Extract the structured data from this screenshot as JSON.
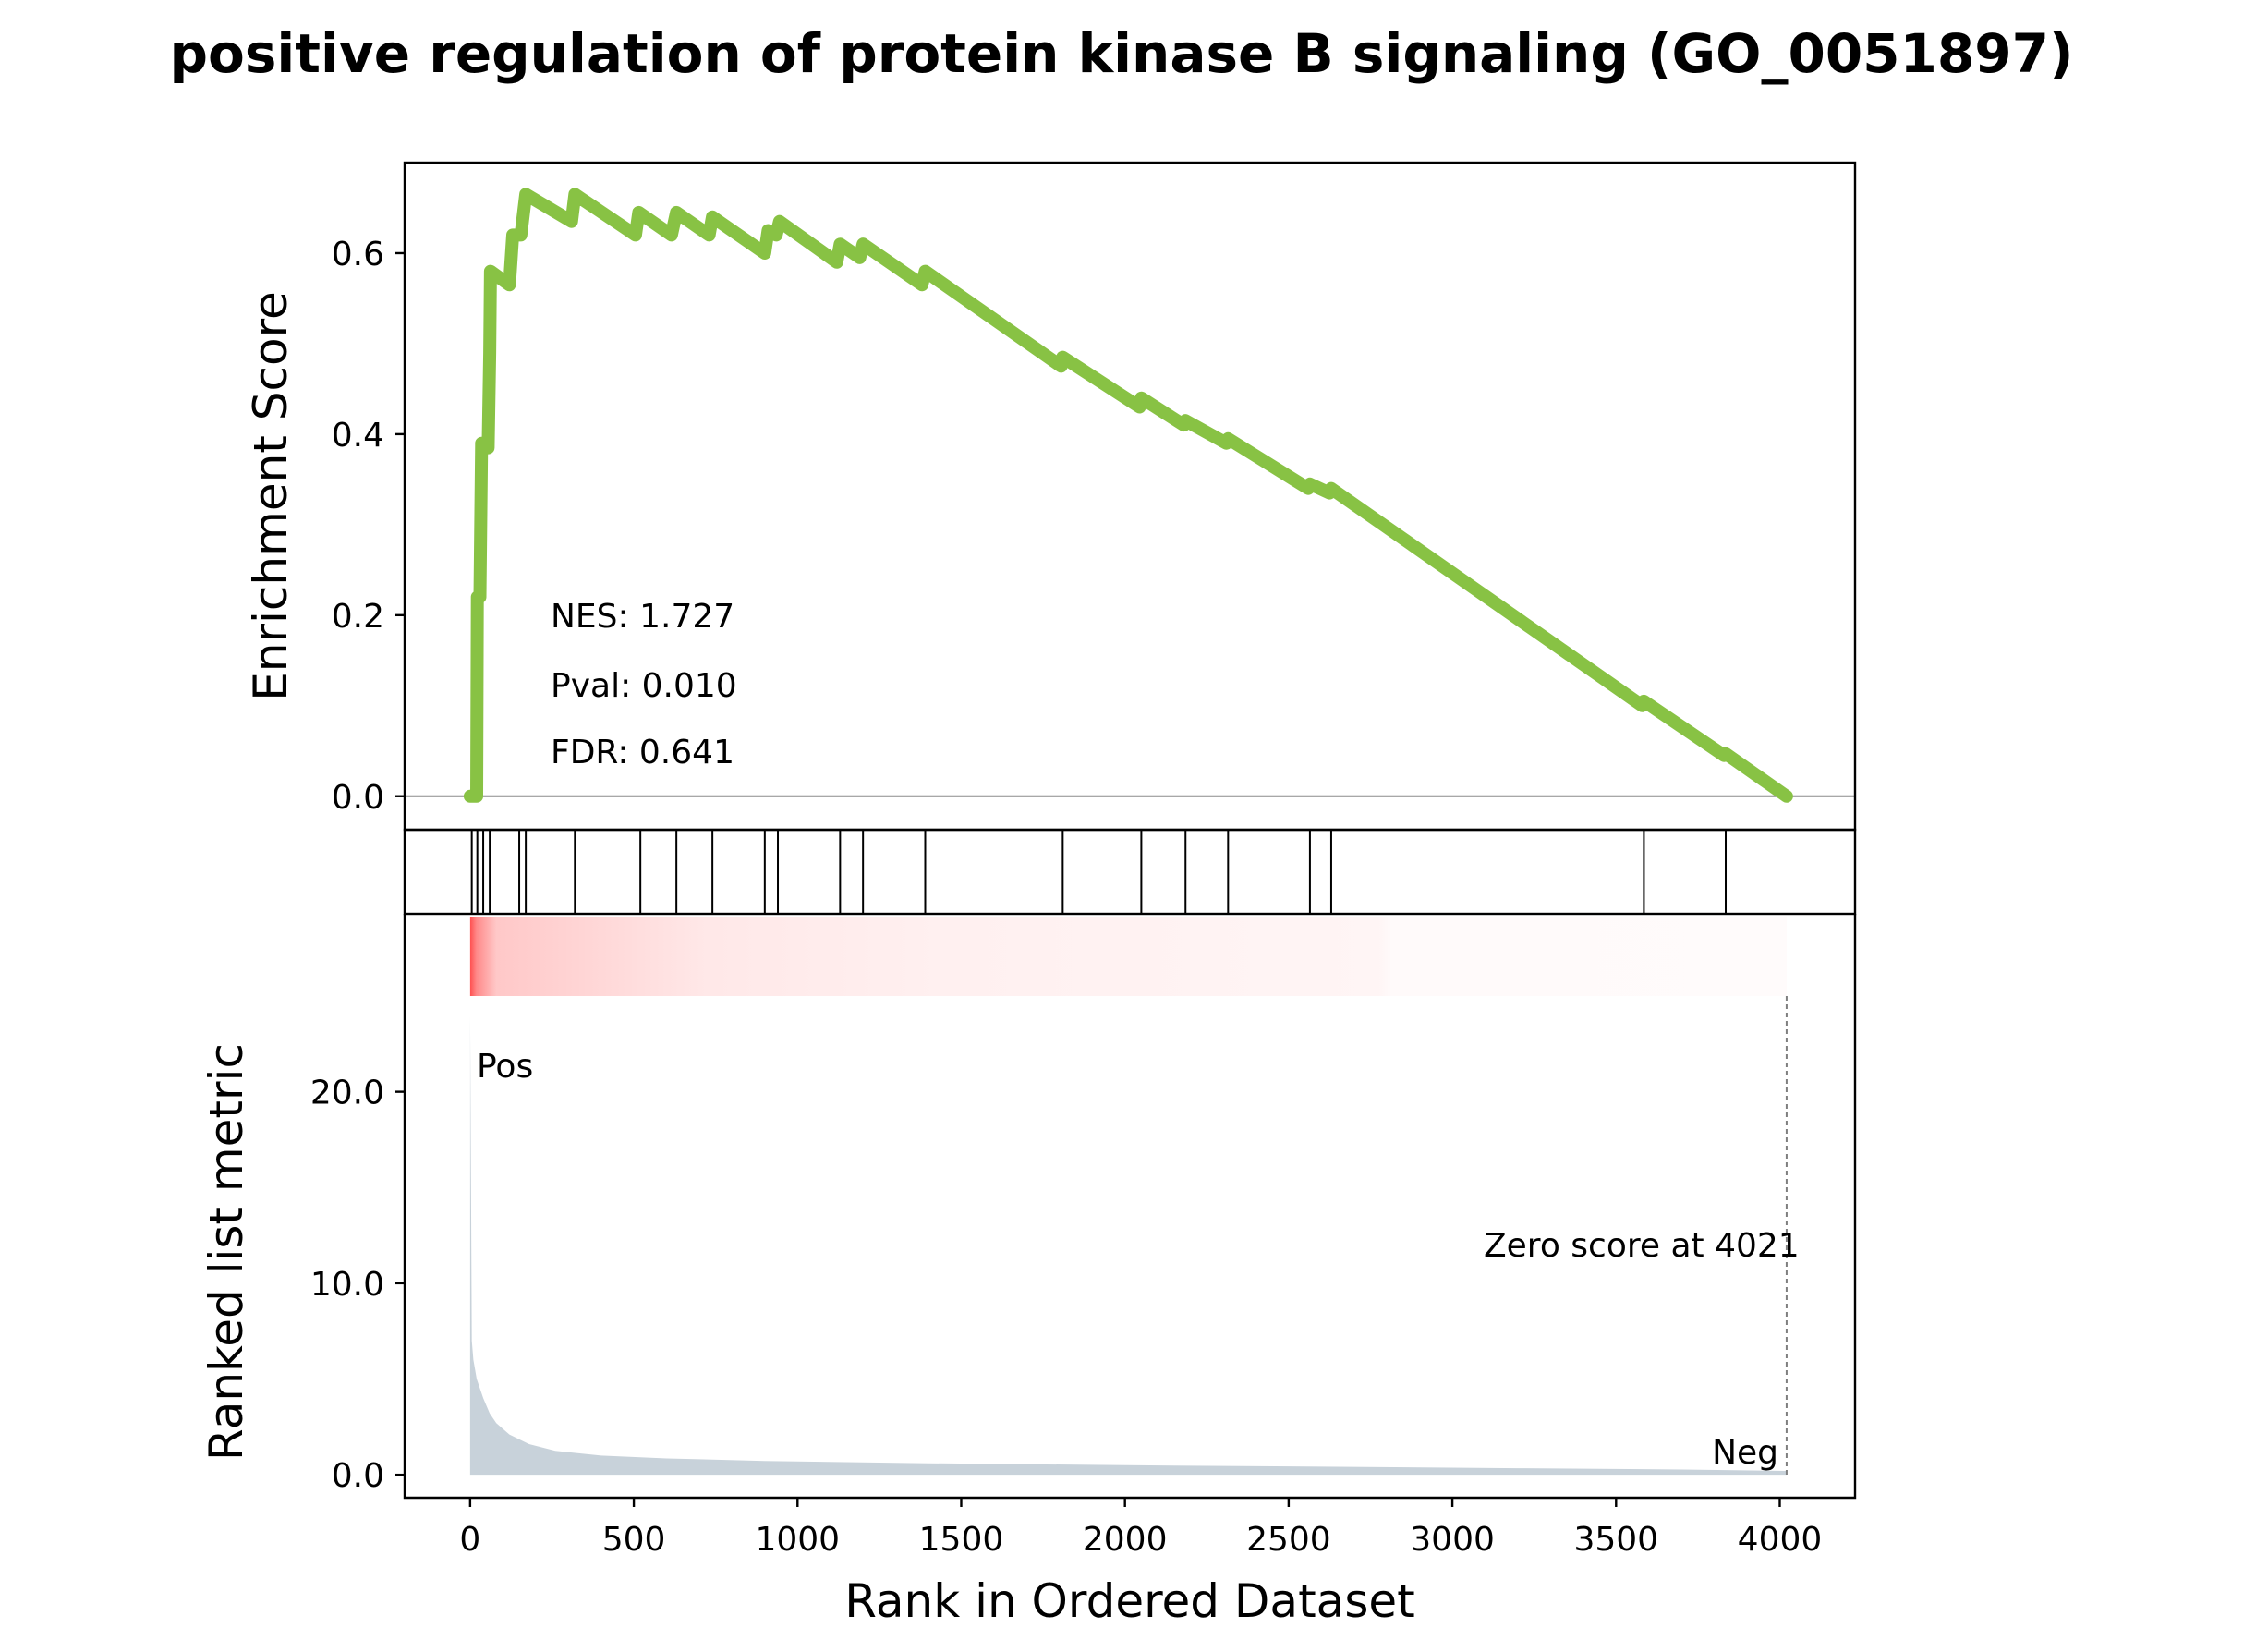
{
  "chart_data": {
    "type": "line",
    "title": "positive regulation of protein kinase B signaling (GO_0051897)",
    "es_panel": {
      "ylabel": "Enrichment Score",
      "yticks": [
        "0.0",
        "0.2",
        "0.4",
        "0.6"
      ],
      "ylim": [
        -0.037,
        0.7
      ],
      "line_color": "#88c244",
      "hits": [
        5,
        22,
        40,
        60,
        150,
        170,
        320,
        520,
        630,
        740,
        900,
        940,
        1130,
        1200,
        1390,
        1810,
        2050,
        2185,
        2315,
        2565,
        2630,
        3585,
        3835
      ],
      "curve": [
        [
          0,
          0.0
        ],
        [
          20,
          0.0
        ],
        [
          22,
          0.22
        ],
        [
          30,
          0.22
        ],
        [
          35,
          0.39
        ],
        [
          55,
          0.385
        ],
        [
          60,
          0.49
        ],
        [
          62,
          0.58
        ],
        [
          120,
          0.565
        ],
        [
          130,
          0.62
        ],
        [
          155,
          0.62
        ],
        [
          170,
          0.665
        ],
        [
          310,
          0.635
        ],
        [
          320,
          0.665
        ],
        [
          505,
          0.62
        ],
        [
          515,
          0.645
        ],
        [
          615,
          0.62
        ],
        [
          630,
          0.645
        ],
        [
          730,
          0.62
        ],
        [
          740,
          0.64
        ],
        [
          900,
          0.6
        ],
        [
          910,
          0.625
        ],
        [
          935,
          0.62
        ],
        [
          945,
          0.635
        ],
        [
          1120,
          0.59
        ],
        [
          1130,
          0.61
        ],
        [
          1190,
          0.595
        ],
        [
          1200,
          0.61
        ],
        [
          1380,
          0.565
        ],
        [
          1390,
          0.58
        ],
        [
          1805,
          0.475
        ],
        [
          1810,
          0.485
        ],
        [
          2045,
          0.43
        ],
        [
          2050,
          0.44
        ],
        [
          2180,
          0.41
        ],
        [
          2185,
          0.415
        ],
        [
          2310,
          0.39
        ],
        [
          2315,
          0.395
        ],
        [
          2560,
          0.34
        ],
        [
          2565,
          0.345
        ],
        [
          2625,
          0.335
        ],
        [
          2630,
          0.34
        ],
        [
          3580,
          0.1
        ],
        [
          3585,
          0.105
        ],
        [
          3830,
          0.045
        ],
        [
          3835,
          0.047
        ],
        [
          4021,
          0.0
        ]
      ]
    },
    "stats": {
      "nes": "NES: 1.727",
      "pval": "Pval: 0.010",
      "fdr": "FDR: 0.641"
    },
    "metric_panel": {
      "ylabel": "Ranked list metric",
      "xlabel": "Rank in Ordered Dataset",
      "xticks": [
        "0",
        "500",
        "1000",
        "1500",
        "2000",
        "2500",
        "3000",
        "3500",
        "4000"
      ],
      "yticks": [
        "0.0",
        "10.0",
        "20.0"
      ],
      "xlim": [
        -200,
        4230
      ],
      "ylim": [
        -1.2,
        25.0
      ],
      "fill_color": "#c8d2da",
      "pos_label": "Pos",
      "neg_label": "Neg",
      "pos_color": "#ff0000",
      "neg_color": "#0000ff",
      "zero_score_label": "Zero score at 4021",
      "zero_rank": 4021,
      "metric": [
        [
          0,
          24.0
        ],
        [
          5,
          7.0
        ],
        [
          10,
          6.0
        ],
        [
          20,
          5.0
        ],
        [
          40,
          4.0
        ],
        [
          60,
          3.2
        ],
        [
          80,
          2.7
        ],
        [
          120,
          2.1
        ],
        [
          180,
          1.6
        ],
        [
          260,
          1.25
        ],
        [
          400,
          1.0
        ],
        [
          600,
          0.85
        ],
        [
          900,
          0.72
        ],
        [
          1400,
          0.6
        ],
        [
          2000,
          0.5
        ],
        [
          2600,
          0.42
        ],
        [
          3200,
          0.34
        ],
        [
          3700,
          0.27
        ],
        [
          4021,
          0.2
        ]
      ]
    }
  }
}
